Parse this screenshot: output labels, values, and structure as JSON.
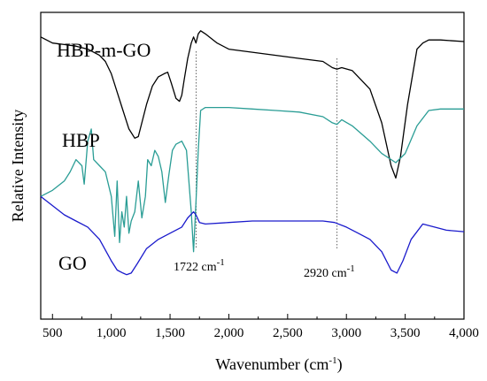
{
  "chart_data": {
    "type": "line",
    "xlabel": "Wavenumber (cm",
    "xlabel_sup": "-1",
    "xlabel_suffix": ")",
    "ylabel": "Relative Intensity",
    "xlim": [
      400,
      4000
    ],
    "ylim": [
      0,
      100
    ],
    "grid": false,
    "legend": "none",
    "x_ticks": [
      500,
      1000,
      1500,
      2000,
      2500,
      3000,
      3500,
      4000
    ],
    "x_tick_labels": [
      "500",
      "1,000",
      "1,500",
      "2,000",
      "2,500",
      "3,000",
      "3,500",
      "4,000"
    ],
    "series": [
      {
        "name": "HBP-m-GO",
        "color": "#000000",
        "x": [
          400,
          500,
          600,
          700,
          800,
          900,
          950,
          1000,
          1050,
          1100,
          1150,
          1200,
          1230,
          1260,
          1300,
          1350,
          1400,
          1450,
          1480,
          1510,
          1550,
          1580,
          1600,
          1620,
          1650,
          1680,
          1700,
          1720,
          1740,
          1760,
          1800,
          1900,
          2000,
          2200,
          2400,
          2600,
          2800,
          2880,
          2920,
          2960,
          3050,
          3200,
          3300,
          3380,
          3420,
          3460,
          3520,
          3600,
          3650,
          3700,
          3800,
          4000
        ],
        "y": [
          92,
          90,
          89.5,
          89,
          88,
          86,
          84,
          80,
          74,
          68,
          62,
          59,
          59.5,
          64,
          70,
          76,
          79,
          80,
          80.5,
          77,
          72,
          71,
          73,
          78,
          85,
          90,
          92,
          90,
          93,
          94,
          93,
          90,
          88,
          87,
          86,
          85,
          84,
          82,
          81.5,
          82,
          81,
          75,
          64,
          50,
          46,
          53,
          70,
          88,
          90,
          91,
          91,
          90.5
        ]
      },
      {
        "name": "HBP",
        "color": "#2a9d95",
        "x": [
          400,
          500,
          600,
          650,
          700,
          750,
          770,
          800,
          830,
          850,
          900,
          950,
          1000,
          1030,
          1050,
          1070,
          1090,
          1110,
          1130,
          1150,
          1170,
          1200,
          1230,
          1260,
          1290,
          1310,
          1340,
          1370,
          1400,
          1430,
          1460,
          1490,
          1520,
          1550,
          1600,
          1640,
          1680,
          1700,
          1720,
          1740,
          1760,
          1800,
          2000,
          2200,
          2400,
          2600,
          2800,
          2880,
          2920,
          2960,
          3050,
          3200,
          3300,
          3420,
          3500,
          3600,
          3700,
          3800,
          4000
        ],
        "y": [
          40,
          42,
          45,
          48,
          52,
          50,
          44,
          58,
          62,
          52,
          50,
          48,
          40,
          27,
          45,
          25,
          35,
          30,
          40,
          28,
          32,
          35,
          45,
          33,
          40,
          52,
          50,
          55,
          53,
          48,
          38,
          47,
          55,
          57,
          58,
          55,
          35,
          22,
          38,
          55,
          68,
          69,
          69,
          68.5,
          68,
          67.5,
          66,
          64,
          63.5,
          65,
          63,
          58,
          54,
          51,
          54,
          63,
          68,
          68.5,
          68.5
        ]
      },
      {
        "name": "GO",
        "color": "#1a1acc",
        "x": [
          400,
          500,
          600,
          700,
          800,
          900,
          1000,
          1050,
          1100,
          1130,
          1170,
          1220,
          1300,
          1400,
          1500,
          1600,
          1650,
          1700,
          1720,
          1750,
          1800,
          2000,
          2200,
          2400,
          2600,
          2800,
          2900,
          3000,
          3100,
          3200,
          3300,
          3380,
          3430,
          3480,
          3550,
          3650,
          3750,
          3850,
          4000
        ],
        "y": [
          40,
          37,
          34,
          32,
          30,
          26,
          19,
          16,
          15,
          14.5,
          15,
          18,
          23,
          26,
          28,
          30,
          33,
          35,
          34,
          31.5,
          31,
          31.5,
          32,
          32,
          32,
          32,
          31.5,
          30,
          28,
          26,
          22,
          16,
          15,
          19,
          26,
          31,
          30,
          29,
          28.5
        ]
      }
    ],
    "annotations": [
      {
        "label": "1722 cm",
        "sup": "-1",
        "x": 1722
      },
      {
        "label": "2920 cm",
        "sup": "-1",
        "x": 2920
      }
    ]
  }
}
